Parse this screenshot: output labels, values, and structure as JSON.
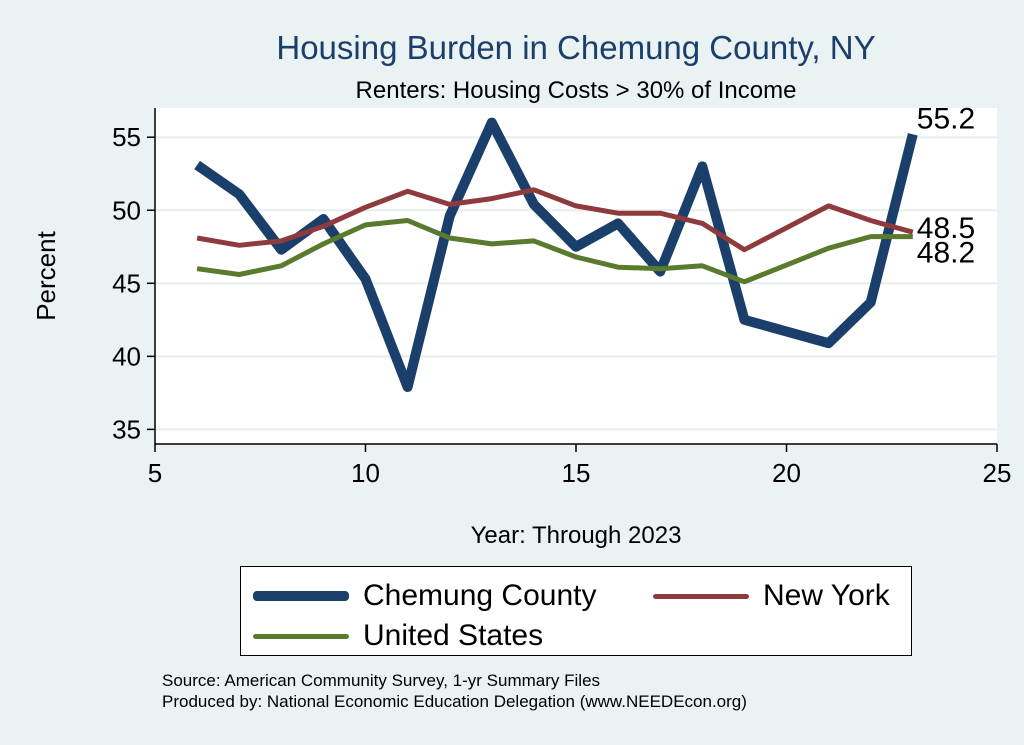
{
  "chart_data": {
    "type": "line",
    "title": "Housing Burden in Chemung County, NY",
    "subtitle": "Renters: Housing Costs > 30% of Income",
    "xlabel": "Year: Through 2023",
    "ylabel": "Percent",
    "xlim": [
      5,
      25
    ],
    "ylim": [
      34,
      57
    ],
    "xticks": [
      5,
      10,
      15,
      20,
      25
    ],
    "yticks": [
      35,
      40,
      45,
      50,
      55
    ],
    "grid": true,
    "legend_position": "bottom",
    "series": [
      {
        "name": "Chemung County",
        "color": "#1b3f6b",
        "x": [
          6,
          7,
          8,
          9,
          10,
          11,
          12,
          13,
          14,
          15,
          16,
          17,
          18,
          19,
          21,
          22,
          23
        ],
        "y": [
          53.1,
          51.1,
          47.3,
          49.4,
          45.3,
          37.9,
          49.6,
          56.0,
          50.4,
          47.5,
          49.1,
          45.8,
          53.0,
          42.5,
          40.9,
          43.7,
          55.2
        ],
        "end_label": "55.2"
      },
      {
        "name": "New York",
        "color": "#8f3a3d",
        "x": [
          6,
          7,
          8,
          9,
          10,
          11,
          12,
          13,
          14,
          15,
          16,
          17,
          18,
          19,
          21,
          22,
          23
        ],
        "y": [
          48.1,
          47.6,
          47.9,
          48.9,
          50.2,
          51.3,
          50.4,
          50.8,
          51.4,
          50.3,
          49.8,
          49.8,
          49.1,
          47.3,
          50.3,
          49.3,
          48.5
        ],
        "end_label": "48.5"
      },
      {
        "name": "United States",
        "color": "#5a7a2e",
        "x": [
          6,
          7,
          8,
          9,
          10,
          11,
          12,
          13,
          14,
          15,
          16,
          17,
          18,
          19,
          21,
          22,
          23
        ],
        "y": [
          46.0,
          45.6,
          46.2,
          47.7,
          49.0,
          49.3,
          48.1,
          47.7,
          47.9,
          46.8,
          46.1,
          46.0,
          46.2,
          45.1,
          47.4,
          48.2,
          48.2
        ],
        "end_label": "48.2"
      }
    ]
  },
  "footer": {
    "source": "Source: American Community Survey, 1-yr Summary Files",
    "producer": "Produced by: National Economic Education Delegation (www.NEEDEcon.org)"
  }
}
